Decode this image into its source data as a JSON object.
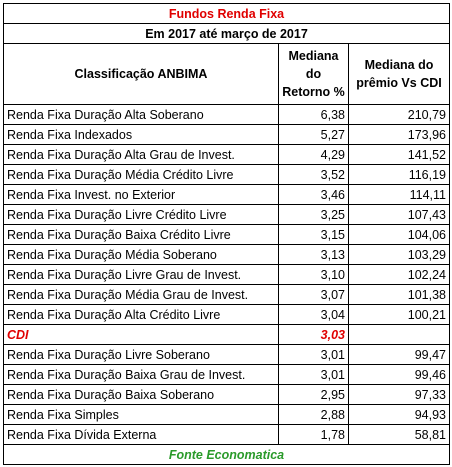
{
  "header": {
    "title": "Fundos Renda Fixa",
    "subtitle": "Em 2017 até março de 2017"
  },
  "table": {
    "columns": [
      "Classificação ANBIMA",
      "Mediana do Retorno %",
      "Mediana do prêmio Vs CDI"
    ],
    "rows": [
      [
        "Renda Fixa Duração Alta Soberano",
        "6,38",
        "210,79"
      ],
      [
        "Renda Fixa Indexados",
        "5,27",
        "173,96"
      ],
      [
        "Renda Fixa Duração Alta Grau de Invest.",
        "4,29",
        "141,52"
      ],
      [
        "Renda Fixa Duração Média Crédito Livre",
        "3,52",
        "116,19"
      ],
      [
        "Renda Fixa Invest. no Exterior",
        "3,46",
        "114,11"
      ],
      [
        "Renda Fixa Duração Livre Crédito Livre",
        "3,25",
        "107,43"
      ],
      [
        "Renda Fixa Duração Baixa Crédito Livre",
        "3,15",
        "104,06"
      ],
      [
        "Renda Fixa Duração Média Soberano",
        "3,13",
        "103,29"
      ],
      [
        "Renda Fixa Duração Livre Grau de Invest.",
        "3,10",
        "102,24"
      ],
      [
        "Renda Fixa Duração Média Grau de Invest.",
        "3,07",
        "101,38"
      ],
      [
        "Renda Fixa Duração Alta Crédito Livre",
        "3,04",
        "100,21"
      ],
      [
        "CDI",
        "3,03"
      ],
      [
        "Renda Fixa Duração Livre Soberano",
        "3,01",
        "99,47"
      ],
      [
        "Renda Fixa Duração Baixa Grau de Invest.",
        "3,01",
        "99,46"
      ],
      [
        "Renda Fixa Duração Baixa Soberano",
        "2,95",
        "97,33"
      ],
      [
        "Renda Fixa Simples",
        "2,88",
        "94,93"
      ],
      [
        "Renda Fixa Dívida Externa",
        "1,78",
        "58,81"
      ]
    ]
  },
  "footer": {
    "source": "Fonte Economatica"
  }
}
